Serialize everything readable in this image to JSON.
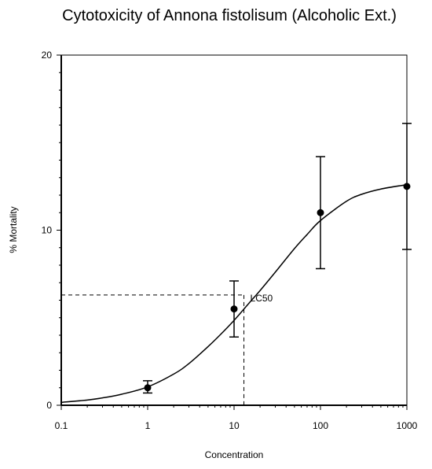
{
  "chart_data": {
    "type": "scatter",
    "title": "Cytotoxicity of Annona fistolisum (Alcoholic Ext.)",
    "xlabel": "Concentration",
    "ylabel": "% Mortality",
    "xscale": "log",
    "xlim": [
      0.1,
      1000
    ],
    "ylim": [
      0,
      20
    ],
    "x_ticks": [
      {
        "value": 0.1,
        "label": "0.1"
      },
      {
        "value": 1,
        "label": "1"
      },
      {
        "value": 10,
        "label": "10"
      },
      {
        "value": 100,
        "label": "100"
      },
      {
        "value": 1000,
        "label": "1000"
      }
    ],
    "y_ticks": [
      {
        "value": 0,
        "label": "0"
      },
      {
        "value": 10,
        "label": "10"
      },
      {
        "value": 20,
        "label": "20"
      }
    ],
    "points": [
      {
        "x": 1,
        "y": 1.0,
        "err_low": 0.7,
        "err_high": 1.4
      },
      {
        "x": 10,
        "y": 5.5,
        "err_low": 3.9,
        "err_high": 7.1
      },
      {
        "x": 100,
        "y": 11.0,
        "err_low": 7.8,
        "err_high": 14.2
      },
      {
        "x": 1000,
        "y": 12.5,
        "err_low": 8.9,
        "err_high": 16.1
      }
    ],
    "fit_curve": {
      "x": [
        0.1,
        0.2,
        0.3,
        0.5,
        1,
        2,
        3,
        5,
        7,
        10,
        15,
        20,
        30,
        50,
        70,
        100,
        200,
        300,
        500,
        1000
      ],
      "y": [
        0.17,
        0.3,
        0.42,
        0.63,
        1.05,
        1.78,
        2.38,
        3.35,
        4.05,
        4.85,
        5.85,
        6.55,
        7.6,
        8.95,
        9.75,
        10.55,
        11.65,
        12.05,
        12.35,
        12.6
      ]
    },
    "lc50": {
      "label": "LC50",
      "x": 13,
      "y": 6.3
    },
    "grid": false,
    "legend": "none",
    "colors": {
      "marks": "#000000",
      "background": "#ffffff"
    }
  }
}
